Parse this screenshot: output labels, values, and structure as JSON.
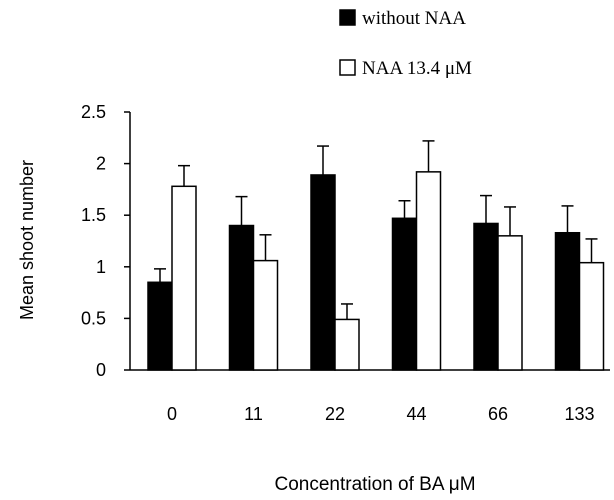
{
  "chart_data": {
    "type": "bar",
    "categories": [
      "0",
      "11",
      "22",
      "44",
      "66",
      "133"
    ],
    "series": [
      {
        "name": "without NAA",
        "values": [
          0.85,
          1.4,
          1.89,
          1.47,
          1.42,
          1.33
        ],
        "errors": [
          0.13,
          0.28,
          0.28,
          0.17,
          0.27,
          0.26
        ],
        "color": "#000000"
      },
      {
        "name": "NAA 13.4 μM",
        "values": [
          1.78,
          1.06,
          0.49,
          1.92,
          1.3,
          1.04
        ],
        "errors": [
          0.2,
          0.25,
          0.15,
          0.3,
          0.28,
          0.23
        ],
        "color": "#ffffff"
      }
    ],
    "xlabel": "Concentration of BA μM",
    "ylabel": "Mean shoot number",
    "ylim": [
      0,
      2.5
    ],
    "yticks": [
      "0",
      "0.5",
      "1",
      "1.5",
      "2",
      "2.5"
    ],
    "grid": false,
    "legend_position": "top-right"
  }
}
